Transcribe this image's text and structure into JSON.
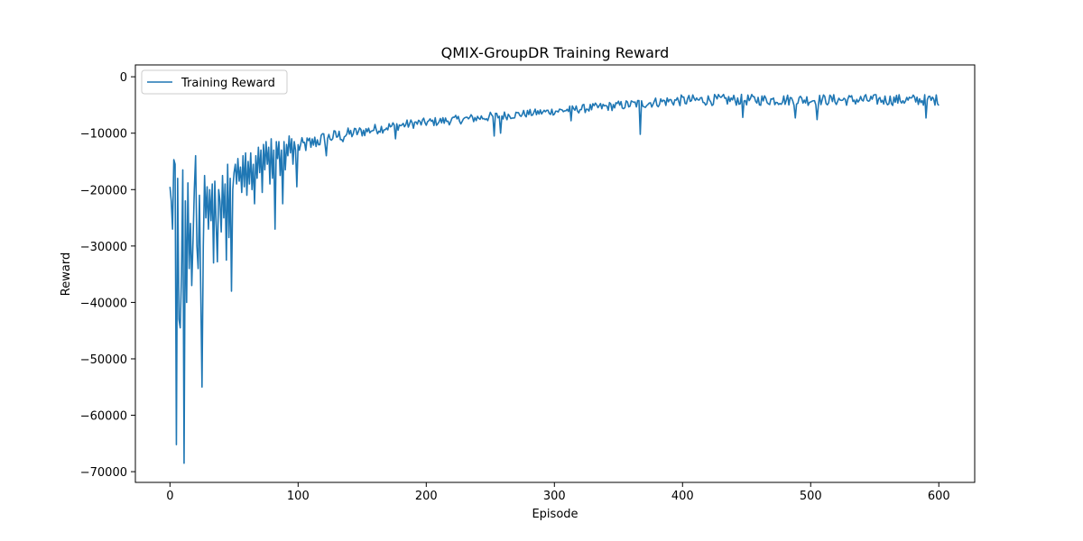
{
  "chart_data": {
    "type": "line",
    "title": "QMIX-GroupDR Training Reward",
    "xlabel": "Episode",
    "ylabel": "Reward",
    "xlim": [
      -27,
      628
    ],
    "ylim": [
      -71900,
      2100
    ],
    "x_ticks": [
      0,
      100,
      200,
      300,
      400,
      500,
      600
    ],
    "y_ticks": [
      0,
      -10000,
      -20000,
      -30000,
      -40000,
      -50000,
      -60000,
      -70000
    ],
    "x_tick_labels": [
      "0",
      "100",
      "200",
      "300",
      "400",
      "500",
      "600"
    ],
    "y_tick_labels": [
      "0",
      "−10000",
      "−20000",
      "−30000",
      "−40000",
      "−50000",
      "−60000",
      "−70000"
    ],
    "grid": false,
    "legend_position": "top-left",
    "series": [
      {
        "name": "Training Reward",
        "color": "#1f77b4",
        "points": [
          [
            0,
            -19500
          ],
          [
            1,
            -22000
          ],
          [
            2,
            -27000
          ],
          [
            3,
            -14700
          ],
          [
            4,
            -15500
          ],
          [
            5,
            -65200
          ],
          [
            6,
            -18000
          ],
          [
            7,
            -43000
          ],
          [
            8,
            -44500
          ],
          [
            9,
            -35000
          ],
          [
            10,
            -16500
          ],
          [
            11,
            -68500
          ],
          [
            12,
            -22000
          ],
          [
            13,
            -40000
          ],
          [
            14,
            -18800
          ],
          [
            15,
            -34000
          ],
          [
            16,
            -26000
          ],
          [
            17,
            -37000
          ],
          [
            18,
            -29000
          ],
          [
            19,
            -20000
          ],
          [
            20,
            -14000
          ],
          [
            21,
            -30000
          ],
          [
            22,
            -34000
          ],
          [
            23,
            -21000
          ],
          [
            24,
            -37500
          ],
          [
            25,
            -55000
          ],
          [
            26,
            -30000
          ],
          [
            27,
            -17500
          ],
          [
            28,
            -25000
          ],
          [
            29,
            -19500
          ],
          [
            30,
            -27000
          ],
          [
            31,
            -20000
          ],
          [
            32,
            -25500
          ],
          [
            33,
            -19000
          ],
          [
            34,
            -33000
          ],
          [
            35,
            -18500
          ],
          [
            36,
            -26000
          ],
          [
            37,
            -32800
          ],
          [
            38,
            -20000
          ],
          [
            39,
            -22000
          ],
          [
            40,
            -27500
          ],
          [
            41,
            -17500
          ],
          [
            42,
            -25000
          ],
          [
            43,
            -19000
          ],
          [
            44,
            -32500
          ],
          [
            45,
            -15500
          ],
          [
            46,
            -28500
          ],
          [
            47,
            -18000
          ],
          [
            48,
            -38000
          ],
          [
            49,
            -20000
          ],
          [
            50,
            -17000
          ],
          [
            51,
            -15500
          ],
          [
            52,
            -19000
          ],
          [
            53,
            -14500
          ],
          [
            54,
            -18500
          ],
          [
            55,
            -16000
          ],
          [
            56,
            -20500
          ],
          [
            57,
            -14000
          ],
          [
            58,
            -19500
          ],
          [
            59,
            -13500
          ],
          [
            60,
            -21000
          ],
          [
            61,
            -15000
          ],
          [
            62,
            -19000
          ],
          [
            63,
            -13500
          ],
          [
            64,
            -20000
          ],
          [
            65,
            -15500
          ],
          [
            66,
            -22500
          ],
          [
            67,
            -14000
          ],
          [
            68,
            -18000
          ],
          [
            69,
            -12500
          ],
          [
            70,
            -17000
          ],
          [
            71,
            -13000
          ],
          [
            72,
            -20500
          ],
          [
            73,
            -12000
          ],
          [
            74,
            -16500
          ],
          [
            75,
            -11500
          ],
          [
            76,
            -15500
          ],
          [
            77,
            -12500
          ],
          [
            78,
            -19000
          ],
          [
            79,
            -11000
          ],
          [
            80,
            -18000
          ],
          [
            81,
            -13000
          ],
          [
            82,
            -27000
          ],
          [
            83,
            -11500
          ],
          [
            84,
            -14500
          ],
          [
            85,
            -11500
          ],
          [
            86,
            -17500
          ],
          [
            87,
            -13000
          ],
          [
            88,
            -22500
          ],
          [
            89,
            -11500
          ],
          [
            90,
            -16500
          ],
          [
            91,
            -12000
          ],
          [
            92,
            -14000
          ],
          [
            93,
            -10500
          ],
          [
            94,
            -13500
          ],
          [
            95,
            -11000
          ],
          [
            96,
            -15500
          ],
          [
            97,
            -11500
          ],
          [
            98,
            -13000
          ],
          [
            99,
            -19500
          ]
        ],
        "trend": [
          [
            100,
            -12500,
            1500
          ],
          [
            110,
            -11800,
            1500
          ],
          [
            120,
            -11000,
            1300
          ],
          [
            130,
            -10500,
            1200
          ],
          [
            140,
            -10100,
            1100
          ],
          [
            150,
            -9700,
            1000
          ],
          [
            160,
            -9300,
            950
          ],
          [
            170,
            -8900,
            900
          ],
          [
            180,
            -8600,
            850
          ],
          [
            190,
            -8300,
            850
          ],
          [
            200,
            -8100,
            800
          ],
          [
            210,
            -7900,
            800
          ],
          [
            220,
            -7700,
            800
          ],
          [
            230,
            -7500,
            800
          ],
          [
            240,
            -7300,
            800
          ],
          [
            250,
            -7100,
            850
          ],
          [
            260,
            -6900,
            800
          ],
          [
            270,
            -6700,
            750
          ],
          [
            280,
            -6500,
            700
          ],
          [
            290,
            -6300,
            700
          ],
          [
            300,
            -6100,
            700
          ],
          [
            310,
            -5900,
            750
          ],
          [
            320,
            -5700,
            750
          ],
          [
            330,
            -5500,
            800
          ],
          [
            340,
            -5300,
            800
          ],
          [
            350,
            -5100,
            850
          ],
          [
            360,
            -4900,
            850
          ],
          [
            370,
            -4700,
            900
          ],
          [
            380,
            -4500,
            900
          ],
          [
            390,
            -4300,
            950
          ],
          [
            400,
            -4200,
            1000
          ],
          [
            420,
            -4100,
            1000
          ],
          [
            440,
            -4100,
            1000
          ],
          [
            460,
            -4100,
            1000
          ],
          [
            480,
            -4100,
            1000
          ],
          [
            500,
            -4100,
            1000
          ],
          [
            520,
            -4100,
            1000
          ],
          [
            540,
            -4100,
            1000
          ],
          [
            560,
            -4100,
            1000
          ],
          [
            580,
            -4100,
            1000
          ],
          [
            600,
            -4100,
            1000
          ]
        ],
        "spikes": [
          [
            253,
            -10500
          ],
          [
            258,
            -10000
          ],
          [
            367,
            -10200
          ],
          [
            110,
            -12500
          ],
          [
            122,
            -14000
          ],
          [
            135,
            -11500
          ],
          [
            176,
            -11000
          ],
          [
            313,
            -7800
          ],
          [
            447,
            -7200
          ],
          [
            488,
            -7300
          ],
          [
            505,
            -7600
          ],
          [
            590,
            -7300
          ]
        ],
        "end_x": 600
      }
    ]
  }
}
